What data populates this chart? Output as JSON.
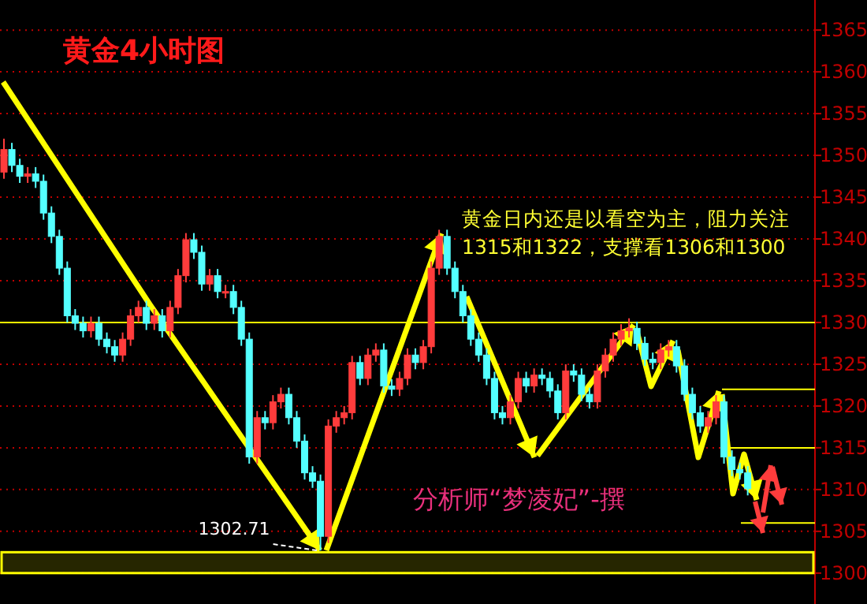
{
  "chart_data": {
    "type": "candlestick",
    "title": "黄金4小时图",
    "annotations": [
      "黄金日内还是以看空为主，阻力关注1315和1322，支撑看1306和1300",
      "分析师“梦凌妃”-撰",
      "1302.71"
    ],
    "categories": [
      null,
      null,
      null,
      null,
      null,
      null,
      null,
      null,
      null,
      null,
      null,
      null,
      null,
      null,
      null,
      null,
      null,
      null,
      null,
      null,
      null,
      null,
      null,
      null,
      null,
      null,
      null,
      null,
      null,
      null,
      null,
      null,
      null,
      null,
      null,
      null,
      null,
      null,
      null,
      null,
      null,
      null,
      null,
      null,
      null,
      null,
      null,
      null,
      null,
      null,
      null,
      null,
      null,
      null,
      null,
      null,
      null,
      null,
      null,
      null,
      null,
      null,
      null,
      null,
      null,
      null,
      null,
      null,
      null,
      null,
      null,
      null,
      null,
      null,
      null,
      null,
      null,
      null,
      null,
      null,
      null,
      null,
      null,
      null,
      null,
      null,
      null,
      null,
      null,
      null,
      null,
      null,
      null,
      null,
      null,
      null,
      null,
      null,
      null,
      null,
      null,
      null,
      null
    ],
    "ohlc": [
      [
        1348.0,
        1352.0,
        1347.2,
        1350.7
      ],
      [
        1350.7,
        1351.5,
        1348.0,
        1348.8
      ],
      [
        1348.8,
        1349.6,
        1346.7,
        1347.5
      ],
      [
        1347.5,
        1348.6,
        1346.7,
        1347.8
      ],
      [
        1347.8,
        1348.6,
        1346.1,
        1346.9
      ],
      [
        1346.9,
        1347.7,
        1342.3,
        1343.1
      ],
      [
        1343.1,
        1343.9,
        1339.5,
        1340.3
      ],
      [
        1340.3,
        1341.1,
        1335.7,
        1336.5
      ],
      [
        1336.5,
        1337.3,
        1330.0,
        1330.8
      ],
      [
        1330.8,
        1331.6,
        1329.1,
        1329.9
      ],
      [
        1329.9,
        1330.7,
        1328.2,
        1329.0
      ],
      [
        1329.0,
        1330.7,
        1328.2,
        1329.9
      ],
      [
        1329.9,
        1330.7,
        1327.2,
        1328.0
      ],
      [
        1328.0,
        1328.8,
        1326.3,
        1327.1
      ],
      [
        1327.1,
        1327.9,
        1325.3,
        1326.1
      ],
      [
        1326.1,
        1328.8,
        1325.3,
        1328.0
      ],
      [
        1328.0,
        1331.6,
        1327.2,
        1330.8
      ],
      [
        1330.8,
        1332.6,
        1330.0,
        1331.8
      ],
      [
        1331.8,
        1332.6,
        1329.1,
        1329.9
      ],
      [
        1329.9,
        1331.6,
        1329.1,
        1330.8
      ],
      [
        1330.8,
        1331.6,
        1328.2,
        1329.0
      ],
      [
        1329.0,
        1332.6,
        1328.2,
        1331.8
      ],
      [
        1331.8,
        1336.4,
        1331.0,
        1335.6
      ],
      [
        1335.6,
        1340.7,
        1334.8,
        1339.9
      ],
      [
        1339.9,
        1340.7,
        1337.6,
        1338.4
      ],
      [
        1338.4,
        1339.2,
        1333.8,
        1334.6
      ],
      [
        1334.6,
        1336.4,
        1333.8,
        1335.6
      ],
      [
        1335.6,
        1336.4,
        1332.9,
        1333.7
      ],
      [
        1333.7,
        1334.5,
        1332.9,
        1333.7
      ],
      [
        1333.7,
        1334.5,
        1331.0,
        1331.8
      ],
      [
        1331.8,
        1332.6,
        1327.2,
        1328.0
      ],
      [
        1328.0,
        1328.8,
        1313.1,
        1313.9
      ],
      [
        1313.9,
        1319.4,
        1313.1,
        1318.6
      ],
      [
        1318.6,
        1319.4,
        1317.2,
        1318.0
      ],
      [
        1318.0,
        1321.3,
        1317.2,
        1320.5
      ],
      [
        1320.5,
        1322.2,
        1319.7,
        1321.4
      ],
      [
        1321.4,
        1322.2,
        1317.8,
        1318.6
      ],
      [
        1318.6,
        1319.4,
        1315.0,
        1315.8
      ],
      [
        1315.8,
        1316.6,
        1311.2,
        1312.0
      ],
      [
        1312.0,
        1312.8,
        1310.2,
        1311.0
      ],
      [
        1311.0,
        1311.8,
        1302.71,
        1304.4
      ],
      [
        1304.4,
        1318.4,
        1303.6,
        1317.6
      ],
      [
        1317.6,
        1319.4,
        1316.8,
        1318.6
      ],
      [
        1318.6,
        1320.0,
        1317.8,
        1319.2
      ],
      [
        1319.2,
        1326.0,
        1318.4,
        1325.2
      ],
      [
        1325.2,
        1326.0,
        1322.5,
        1323.3
      ],
      [
        1323.3,
        1326.9,
        1322.5,
        1326.1
      ],
      [
        1326.1,
        1327.5,
        1325.3,
        1326.7
      ],
      [
        1326.7,
        1327.5,
        1321.6,
        1322.4
      ],
      [
        1322.4,
        1323.2,
        1321.2,
        1322.0
      ],
      [
        1322.0,
        1324.1,
        1321.2,
        1323.3
      ],
      [
        1323.3,
        1326.9,
        1322.5,
        1326.1
      ],
      [
        1326.1,
        1326.9,
        1324.4,
        1325.2
      ],
      [
        1325.2,
        1327.9,
        1324.4,
        1327.1
      ],
      [
        1327.1,
        1337.3,
        1326.3,
        1336.5
      ],
      [
        1336.5,
        1341.1,
        1335.7,
        1340.3
      ],
      [
        1340.3,
        1341.1,
        1335.7,
        1336.5
      ],
      [
        1336.5,
        1337.3,
        1332.9,
        1333.7
      ],
      [
        1333.7,
        1334.5,
        1330.0,
        1330.8
      ],
      [
        1330.8,
        1331.6,
        1327.2,
        1328.0
      ],
      [
        1328.0,
        1328.8,
        1325.3,
        1326.1
      ],
      [
        1326.1,
        1326.9,
        1322.5,
        1323.3
      ],
      [
        1323.3,
        1324.1,
        1318.4,
        1319.2
      ],
      [
        1319.2,
        1320.0,
        1317.8,
        1318.6
      ],
      [
        1318.6,
        1321.3,
        1317.8,
        1320.5
      ],
      [
        1320.5,
        1324.1,
        1319.7,
        1323.3
      ],
      [
        1323.3,
        1324.1,
        1321.6,
        1322.4
      ],
      [
        1322.4,
        1324.5,
        1321.6,
        1323.7
      ],
      [
        1323.7,
        1324.5,
        1322.5,
        1323.3
      ],
      [
        1323.3,
        1324.1,
        1321.0,
        1321.8
      ],
      [
        1321.8,
        1322.6,
        1318.4,
        1319.2
      ],
      [
        1319.2,
        1325.0,
        1318.4,
        1324.2
      ],
      [
        1324.2,
        1325.0,
        1322.9,
        1323.7
      ],
      [
        1323.7,
        1324.5,
        1320.6,
        1321.4
      ],
      [
        1321.4,
        1322.2,
        1319.7,
        1320.5
      ],
      [
        1320.5,
        1325.0,
        1319.7,
        1324.2
      ],
      [
        1324.2,
        1326.9,
        1323.4,
        1326.1
      ],
      [
        1326.1,
        1328.8,
        1325.3,
        1328.0
      ],
      [
        1328.0,
        1329.8,
        1327.2,
        1329.0
      ],
      [
        1329.0,
        1330.5,
        1328.2,
        1329.3
      ],
      [
        1329.3,
        1330.1,
        1326.7,
        1327.5
      ],
      [
        1327.5,
        1328.3,
        1324.8,
        1325.6
      ],
      [
        1325.6,
        1326.4,
        1324.4,
        1325.2
      ],
      [
        1325.2,
        1327.5,
        1324.4,
        1326.7
      ],
      [
        1326.7,
        1327.9,
        1325.9,
        1327.1
      ],
      [
        1327.1,
        1327.9,
        1324.0,
        1324.8
      ],
      [
        1324.8,
        1325.6,
        1320.6,
        1321.4
      ],
      [
        1321.4,
        1322.2,
        1318.4,
        1319.2
      ],
      [
        1319.2,
        1320.0,
        1316.8,
        1317.6
      ],
      [
        1317.6,
        1319.4,
        1316.8,
        1318.6
      ],
      [
        1318.6,
        1321.3,
        1317.8,
        1320.5
      ],
      [
        1320.5,
        1321.3,
        1313.1,
        1313.9
      ],
      [
        1313.9,
        1314.7,
        1311.6,
        1312.4
      ],
      [
        1312.4,
        1313.2,
        1311.2,
        1312.0
      ],
      [
        1312.0,
        1312.8,
        1309.3,
        1310.1
      ],
      null,
      null,
      null,
      null,
      null,
      null,
      null,
      null
    ],
    "ylim": [
      1296.3,
      1368.6
    ],
    "yticks": [
      1300,
      1305,
      1310,
      1315,
      1320,
      1325,
      1330,
      1335,
      1340,
      1345,
      1350,
      1355,
      1360,
      1365
    ],
    "grid": "y",
    "ref_lines": [
      {
        "axis": "y",
        "value": 1330,
        "color": "#ffff00"
      },
      {
        "axis": "y",
        "value": 1322,
        "color": "#ffff00"
      },
      {
        "axis": "y",
        "value": 1315,
        "color": "#ffff00"
      },
      {
        "axis": "y",
        "value": 1306,
        "color": "#ffff00"
      }
    ],
    "bands": [
      {
        "axis": "y",
        "from": 1300,
        "to": 1302.5,
        "color": "#ffff00"
      }
    ]
  }
}
